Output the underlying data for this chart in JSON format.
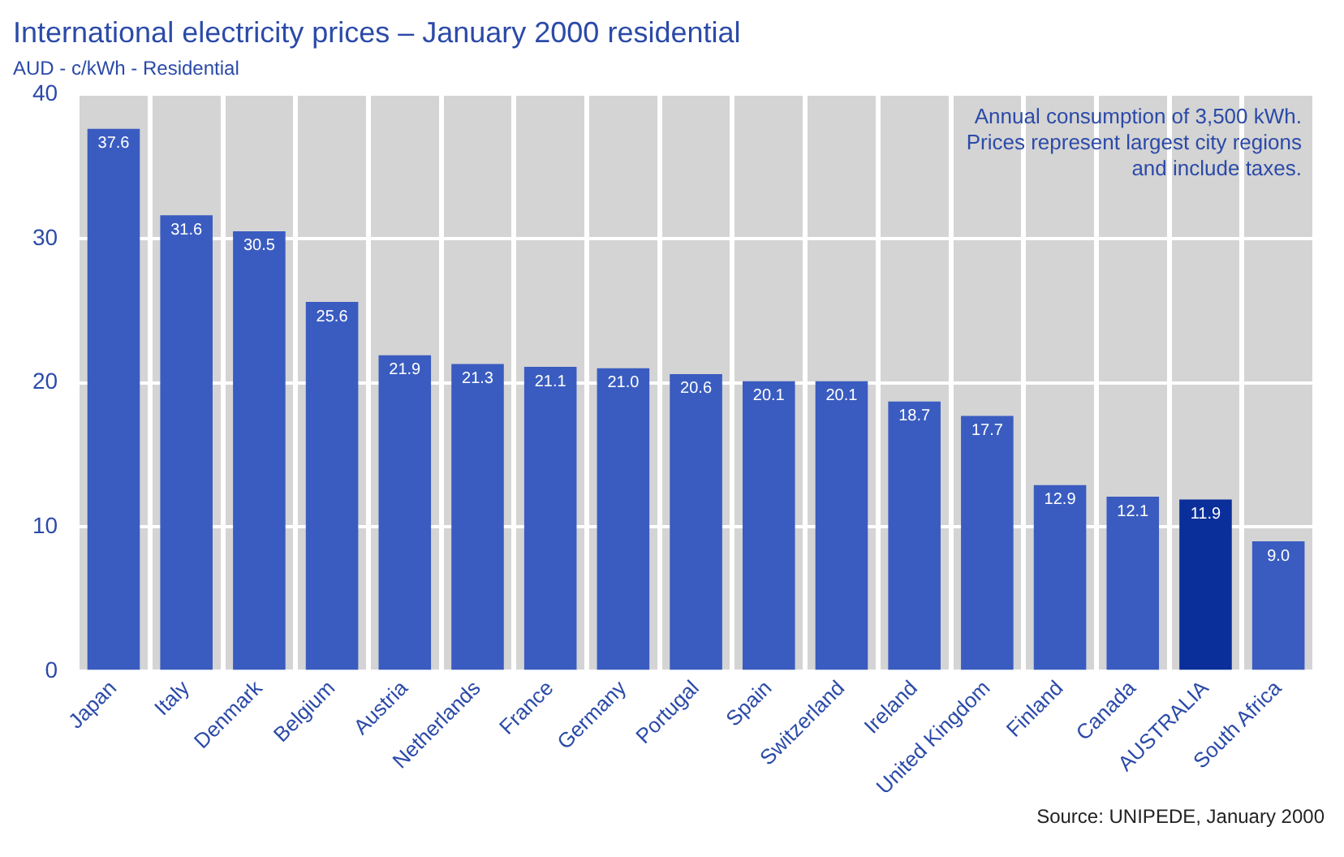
{
  "chart_data": {
    "type": "bar",
    "title": "International electricity prices – January 2000 residential",
    "subtitle": "AUD - c/kWh - Residential",
    "categories": [
      "Japan",
      "Italy",
      "Denmark",
      "Belgium",
      "Austria",
      "Netherlands",
      "France",
      "Germany",
      "Portugal",
      "Spain",
      "Switzerland",
      "Ireland",
      "United Kingdom",
      "Finland",
      "Canada",
      "AUSTRALIA",
      "South Africa"
    ],
    "values": [
      37.6,
      31.6,
      30.5,
      25.6,
      21.9,
      21.3,
      21.1,
      21.0,
      20.6,
      20.1,
      20.1,
      18.7,
      17.7,
      12.9,
      12.1,
      11.9,
      9.0
    ],
    "colors": [
      "#3a5cc0",
      "#3a5cc0",
      "#3a5cc0",
      "#3a5cc0",
      "#3a5cc0",
      "#3a5cc0",
      "#3a5cc0",
      "#3a5cc0",
      "#3a5cc0",
      "#3a5cc0",
      "#3a5cc0",
      "#3a5cc0",
      "#3a5cc0",
      "#3a5cc0",
      "#3a5cc0",
      "#0a2f9a",
      "#3a5cc0"
    ],
    "ylim": [
      0,
      40
    ],
    "yticks": [
      0,
      10,
      20,
      30,
      40
    ],
    "grid": true,
    "legend": false,
    "value_labels": [
      "37.6",
      "31.6",
      "30.5",
      "25.6",
      "21.9",
      "21.3",
      "21.1",
      "21.0",
      "20.6",
      "20.1",
      "20.1",
      "18.7",
      "17.7",
      "12.9",
      "12.1",
      "11.9",
      "9.0"
    ],
    "annotations": [
      "Annual consumption of 3,500 kWh.\nPrices represent largest city regions\nand include taxes.",
      "Source: UNIPEDE, January 2000"
    ]
  }
}
